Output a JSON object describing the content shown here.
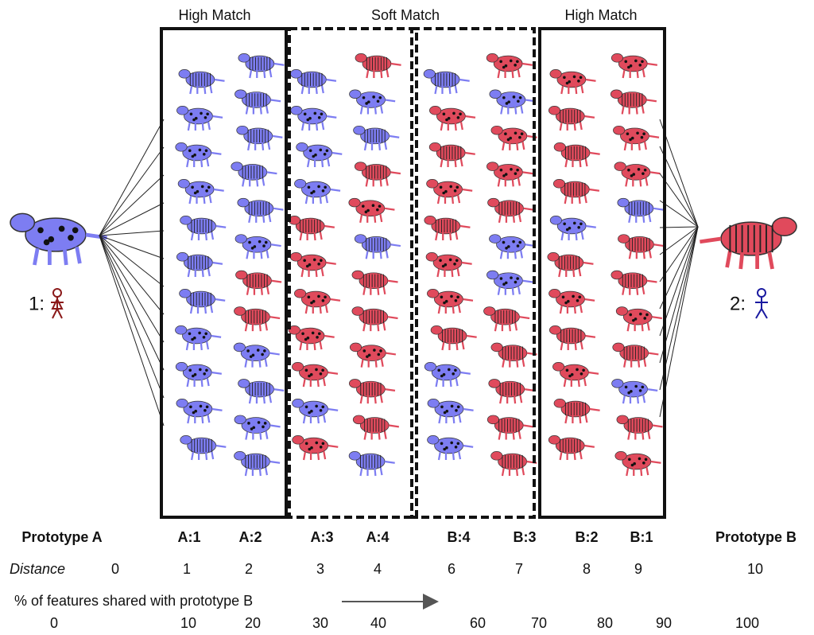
{
  "boxes": [
    {
      "label": "High Match"
    },
    {
      "label": "Soft Match"
    },
    {
      "label": "High Match"
    }
  ],
  "prototypes": [
    {
      "label": "1:"
    },
    {
      "label": "2:"
    }
  ],
  "columns": {
    "names": [
      "Prototype A",
      "A:1",
      "A:2",
      "A:3",
      "A:4",
      "B:4",
      "B:3",
      "B:2",
      "B:1",
      "Prototype B"
    ],
    "distance_label": "Distance",
    "distances": [
      0,
      1,
      2,
      3,
      4,
      6,
      7,
      8,
      9,
      10
    ]
  },
  "shared_label": "% of features shared with prototype B",
  "shared": [
    0,
    10,
    20,
    30,
    40,
    60,
    70,
    80,
    90,
    100
  ]
}
